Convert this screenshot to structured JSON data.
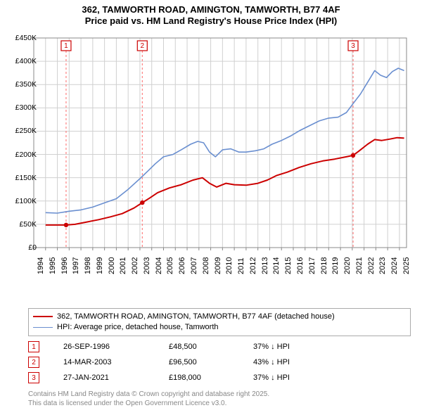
{
  "title": {
    "line1": "362, TAMWORTH ROAD, AMINGTON, TAMWORTH, B77 4AF",
    "line2": "Price paid vs. HM Land Registry's House Price Index (HPI)"
  },
  "chart": {
    "type": "line",
    "background_color": "#ffffff",
    "plot_border_color": "#888888",
    "grid_color": "#d0d0d0",
    "y": {
      "min": 0,
      "max": 450000,
      "step": 50000,
      "labels": [
        "£0",
        "£50K",
        "£100K",
        "£150K",
        "£200K",
        "£250K",
        "£300K",
        "£350K",
        "£400K",
        "£450K"
      ]
    },
    "x": {
      "min": 1994,
      "max": 2025.6,
      "labels": [
        "1994",
        "1995",
        "1996",
        "1997",
        "1998",
        "1999",
        "2000",
        "2001",
        "2002",
        "2003",
        "2004",
        "2005",
        "2006",
        "2007",
        "2008",
        "2009",
        "2010",
        "2011",
        "2012",
        "2013",
        "2014",
        "2015",
        "2016",
        "2017",
        "2018",
        "2019",
        "2020",
        "2021",
        "2022",
        "2023",
        "2024",
        "2025"
      ]
    },
    "series": [
      {
        "name": "price_paid",
        "color": "#cc0000",
        "width": 2,
        "points": [
          [
            1995.0,
            48500
          ],
          [
            1996.74,
            48500
          ],
          [
            1997.5,
            50000
          ],
          [
            1998.5,
            55000
          ],
          [
            1999.5,
            60000
          ],
          [
            2000.5,
            66000
          ],
          [
            2001.5,
            73000
          ],
          [
            2002.5,
            85000
          ],
          [
            2003.2,
            96500
          ],
          [
            2003.8,
            106000
          ],
          [
            2004.5,
            118000
          ],
          [
            2005.5,
            128000
          ],
          [
            2006.5,
            135000
          ],
          [
            2007.5,
            145000
          ],
          [
            2008.3,
            150000
          ],
          [
            2008.9,
            138000
          ],
          [
            2009.5,
            130000
          ],
          [
            2010.3,
            138000
          ],
          [
            2011.0,
            135000
          ],
          [
            2012.0,
            134000
          ],
          [
            2013.0,
            138000
          ],
          [
            2013.8,
            145000
          ],
          [
            2014.6,
            155000
          ],
          [
            2015.5,
            162000
          ],
          [
            2016.5,
            172000
          ],
          [
            2017.5,
            180000
          ],
          [
            2018.5,
            186000
          ],
          [
            2019.5,
            190000
          ],
          [
            2020.5,
            195000
          ],
          [
            2021.07,
            198000
          ],
          [
            2021.6,
            208000
          ],
          [
            2022.3,
            222000
          ],
          [
            2022.9,
            232000
          ],
          [
            2023.5,
            230000
          ],
          [
            2024.2,
            233000
          ],
          [
            2024.8,
            236000
          ],
          [
            2025.4,
            235000
          ]
        ],
        "dots": [
          [
            1996.74,
            48500
          ],
          [
            2003.2,
            96500
          ],
          [
            2021.07,
            198000
          ]
        ]
      },
      {
        "name": "hpi",
        "color": "#6a8fd0",
        "width": 1.6,
        "points": [
          [
            1995.0,
            75000
          ],
          [
            1996.0,
            74000
          ],
          [
            1997.0,
            78000
          ],
          [
            1998.0,
            81000
          ],
          [
            1999.0,
            87000
          ],
          [
            2000.0,
            96000
          ],
          [
            2001.0,
            105000
          ],
          [
            2002.0,
            125000
          ],
          [
            2003.0,
            148000
          ],
          [
            2003.7,
            165000
          ],
          [
            2004.3,
            180000
          ],
          [
            2005.0,
            195000
          ],
          [
            2005.8,
            200000
          ],
          [
            2006.5,
            210000
          ],
          [
            2007.3,
            222000
          ],
          [
            2007.9,
            228000
          ],
          [
            2008.4,
            225000
          ],
          [
            2008.9,
            205000
          ],
          [
            2009.4,
            195000
          ],
          [
            2010.0,
            210000
          ],
          [
            2010.7,
            212000
          ],
          [
            2011.4,
            205000
          ],
          [
            2012.0,
            205000
          ],
          [
            2012.8,
            208000
          ],
          [
            2013.5,
            212000
          ],
          [
            2014.2,
            222000
          ],
          [
            2015.0,
            230000
          ],
          [
            2015.8,
            240000
          ],
          [
            2016.6,
            252000
          ],
          [
            2017.4,
            262000
          ],
          [
            2018.2,
            272000
          ],
          [
            2019.0,
            278000
          ],
          [
            2019.8,
            280000
          ],
          [
            2020.5,
            290000
          ],
          [
            2021.1,
            310000
          ],
          [
            2021.7,
            330000
          ],
          [
            2022.3,
            355000
          ],
          [
            2022.9,
            380000
          ],
          [
            2023.4,
            370000
          ],
          [
            2023.9,
            365000
          ],
          [
            2024.4,
            378000
          ],
          [
            2024.9,
            385000
          ],
          [
            2025.4,
            380000
          ]
        ]
      }
    ],
    "markers": [
      {
        "n": "1",
        "x": 1996.74,
        "color": "#cc0000"
      },
      {
        "n": "2",
        "x": 2003.2,
        "color": "#cc0000"
      },
      {
        "n": "3",
        "x": 2021.07,
        "color": "#cc0000"
      }
    ]
  },
  "legend": {
    "items": [
      {
        "color": "#cc0000",
        "width": 2,
        "label": "362, TAMWORTH ROAD, AMINGTON, TAMWORTH, B77 4AF (detached house)"
      },
      {
        "color": "#6a8fd0",
        "width": 1.5,
        "label": "HPI: Average price, detached house, Tamworth"
      }
    ]
  },
  "sales": [
    {
      "n": "1",
      "date": "26-SEP-1996",
      "price": "£48,500",
      "diff": "37% ↓ HPI"
    },
    {
      "n": "2",
      "date": "14-MAR-2003",
      "price": "£96,500",
      "diff": "43% ↓ HPI"
    },
    {
      "n": "3",
      "date": "27-JAN-2021",
      "price": "£198,000",
      "diff": "37% ↓ HPI"
    }
  ],
  "footnote": {
    "line1": "Contains HM Land Registry data © Crown copyright and database right 2025.",
    "line2": "This data is licensed under the Open Government Licence v3.0."
  }
}
